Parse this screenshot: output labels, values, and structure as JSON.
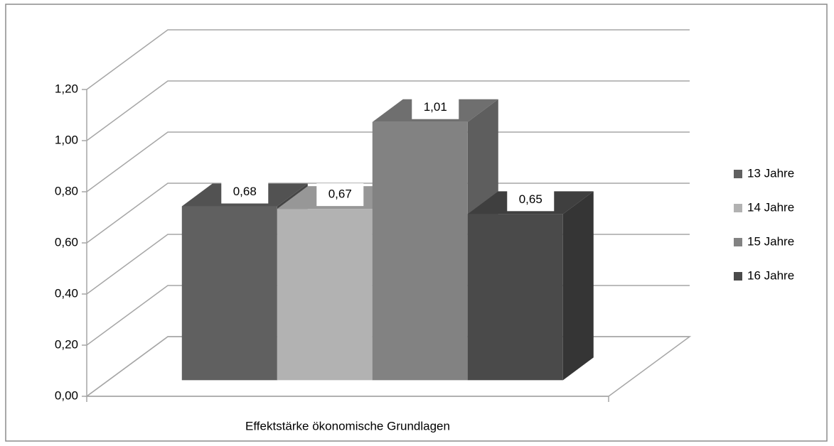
{
  "chart_data": {
    "type": "bar3d",
    "categories": [
      "Effektstärke ökonomische Grundlagen"
    ],
    "series": [
      {
        "name": "13 Jahre",
        "color": "#606060",
        "values": [
          0.68
        ],
        "value_labels": [
          "0,68"
        ]
      },
      {
        "name": "14 Jahre",
        "color": "#b2b2b2",
        "values": [
          0.67
        ],
        "value_labels": [
          "0,67"
        ]
      },
      {
        "name": "15 Jahre",
        "color": "#828282",
        "values": [
          1.01
        ],
        "value_labels": [
          "1,01"
        ]
      },
      {
        "name": "16 Jahre",
        "color": "#4a4a4a",
        "values": [
          0.65
        ],
        "value_labels": [
          "0,65"
        ]
      }
    ],
    "ylim": [
      0,
      1.2
    ],
    "yticks": [
      {
        "value": 0,
        "label": "0,00"
      },
      {
        "value": 0.2,
        "label": "0,20"
      },
      {
        "value": 0.4,
        "label": "0,40"
      },
      {
        "value": 0.6,
        "label": "0,60"
      },
      {
        "value": 0.8,
        "label": "0,80"
      },
      {
        "value": 1.0,
        "label": "1,00"
      },
      {
        "value": 1.2,
        "label": "1,20"
      }
    ],
    "grid": true,
    "legend": "right"
  }
}
